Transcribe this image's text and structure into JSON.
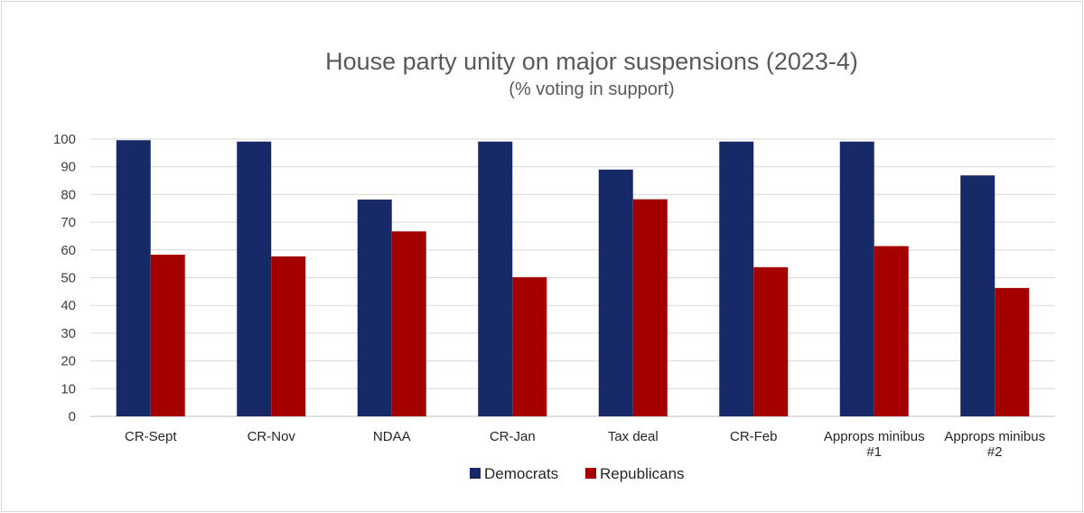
{
  "chart_data": {
    "type": "bar",
    "title": "House party unity on major suspensions (2023-4)",
    "subtitle": "(% voting in support)",
    "xlabel": "",
    "ylabel": "",
    "ylim": [
      0,
      100
    ],
    "yticks": [
      "0",
      "10",
      "20",
      "30",
      "40",
      "50",
      "60",
      "70",
      "80",
      "90",
      "100"
    ],
    "grid": true,
    "legend_position": "bottom",
    "categories": [
      [
        "CR-Sept"
      ],
      [
        "CR-Nov"
      ],
      [
        "NDAA"
      ],
      [
        "CR-Jan"
      ],
      [
        "Tax deal"
      ],
      [
        "CR-Feb"
      ],
      [
        "Approps minibus",
        "#1"
      ],
      [
        "Approps minibus",
        "#2"
      ]
    ],
    "series": [
      {
        "name": "Democrats",
        "color": "#172a67",
        "values": [
          99.6,
          99.1,
          78.2,
          99.1,
          89.0,
          99.1,
          99.1,
          86.9
        ]
      },
      {
        "name": "Republicans",
        "color": "#a50000",
        "values": [
          58.3,
          57.7,
          66.7,
          50.2,
          78.3,
          53.8,
          61.4,
          46.3
        ]
      }
    ]
  }
}
